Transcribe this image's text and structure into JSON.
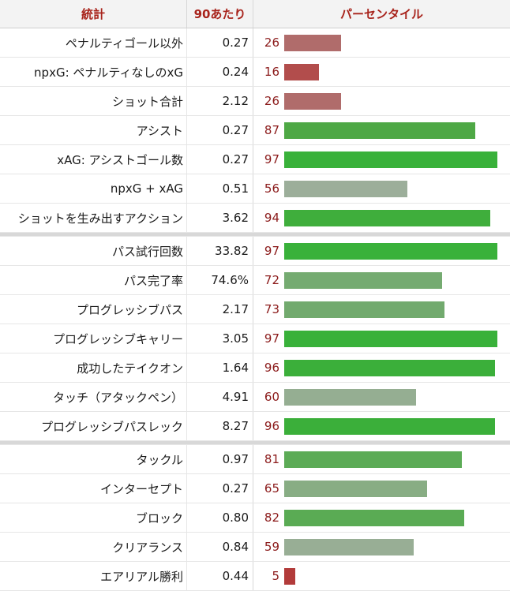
{
  "header": {
    "stat": "統計",
    "per90": "90あたり",
    "percentile": "パーセンタイル"
  },
  "groups": [
    [
      {
        "stat": "ペナルティゴール以外",
        "per90": "0.27",
        "pct": 26,
        "color": "#b06c6b"
      },
      {
        "stat": "npxG: ペナルティなしのxG",
        "per90": "0.24",
        "pct": 16,
        "color": "#b24d4c"
      },
      {
        "stat": "ショット合計",
        "per90": "2.12",
        "pct": 26,
        "color": "#b06c6b"
      },
      {
        "stat": "アシスト",
        "per90": "0.27",
        "pct": 87,
        "color": "#4ea845"
      },
      {
        "stat": "xAG: アシストゴール数",
        "per90": "0.27",
        "pct": 97,
        "color": "#39b13a"
      },
      {
        "stat": "npxG + xAG",
        "per90": "0.51",
        "pct": 56,
        "color": "#9cae9a"
      },
      {
        "stat": "ショットを生み出すアクション",
        "per90": "3.62",
        "pct": 94,
        "color": "#3fae3c"
      }
    ],
    [
      {
        "stat": "パス試行回数",
        "per90": "33.82",
        "pct": 97,
        "color": "#39b13a"
      },
      {
        "stat": "パス完了率",
        "per90": "74.6%",
        "pct": 72,
        "color": "#75ab71"
      },
      {
        "stat": "プログレッシブパス",
        "per90": "2.17",
        "pct": 73,
        "color": "#72aa6e"
      },
      {
        "stat": "プログレッシブキャリー",
        "per90": "3.05",
        "pct": 97,
        "color": "#39b13a"
      },
      {
        "stat": "成功したテイクオン",
        "per90": "1.64",
        "pct": 96,
        "color": "#3baf3a"
      },
      {
        "stat": "タッチ（アタックペン）",
        "per90": "4.91",
        "pct": 60,
        "color": "#95ae92"
      },
      {
        "stat": "プログレッシブパスレック",
        "per90": "8.27",
        "pct": 96,
        "color": "#3baf3a"
      }
    ],
    [
      {
        "stat": "タックル",
        "per90": "0.97",
        "pct": 81,
        "color": "#5cab56"
      },
      {
        "stat": "インターセプト",
        "per90": "0.27",
        "pct": 65,
        "color": "#88ad84"
      },
      {
        "stat": "ブロック",
        "per90": "0.80",
        "pct": 82,
        "color": "#5aab54"
      },
      {
        "stat": "クリアランス",
        "per90": "0.84",
        "pct": 59,
        "color": "#98ae95"
      },
      {
        "stat": "エアリアル勝利",
        "per90": "0.44",
        "pct": 5,
        "color": "#b23b3a"
      }
    ]
  ]
}
